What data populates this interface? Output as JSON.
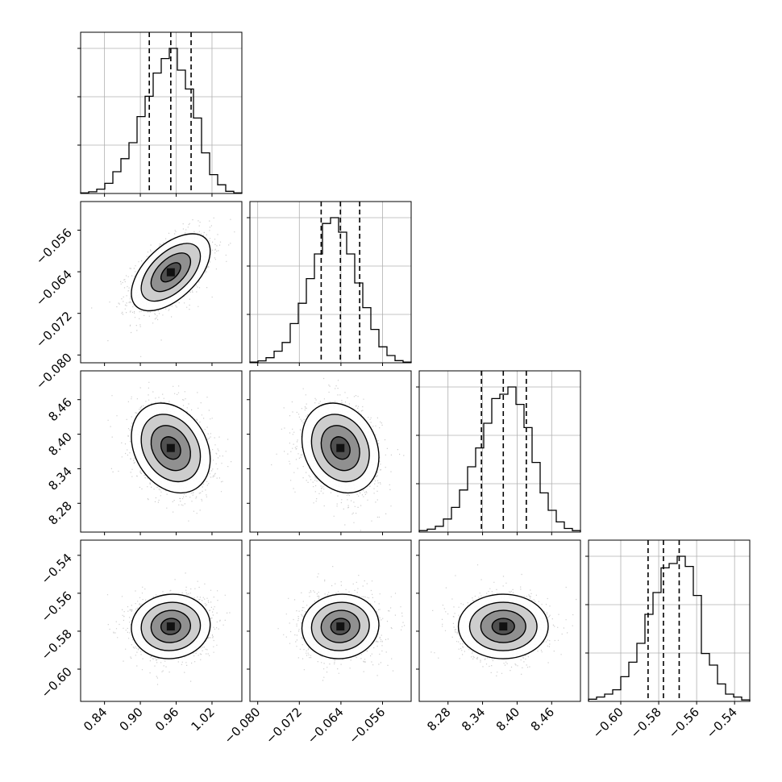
{
  "chart_data": {
    "type": "corner",
    "parameters": 4,
    "ranges": [
      [
        0.8,
        1.07
      ],
      [
        -0.0815,
        -0.0505
      ],
      [
        8.23,
        8.51
      ],
      [
        -0.617,
        -0.532
      ]
    ],
    "ticks": [
      {
        "values": [
          0.84,
          0.9,
          0.96,
          1.02
        ],
        "labels": [
          "0.84",
          "0.90",
          "0.96",
          "1.02"
        ]
      },
      {
        "values": [
          -0.08,
          -0.072,
          -0.064,
          -0.056
        ],
        "labels": [
          "−0.080",
          "−0.072",
          "−0.064",
          "−0.056"
        ]
      },
      {
        "values": [
          8.28,
          8.34,
          8.4,
          8.46
        ],
        "labels": [
          "8.28",
          "8.34",
          "8.40",
          "8.46"
        ]
      },
      {
        "values": [
          -0.6,
          -0.58,
          -0.56,
          -0.54
        ],
        "labels": [
          "−0.60",
          "−0.58",
          "−0.56",
          "−0.54"
        ]
      }
    ],
    "quantiles": [
      [
        0.915,
        0.951,
        0.985
      ],
      [
        -0.0678,
        -0.0641,
        -0.0604
      ],
      [
        8.338,
        8.376,
        8.416
      ],
      [
        -0.5856,
        -0.5775,
        -0.5692
      ]
    ],
    "histograms": [
      [
        0.004,
        0.012,
        0.03,
        0.07,
        0.15,
        0.24,
        0.35,
        0.53,
        0.67,
        0.83,
        0.93,
        1.0,
        0.85,
        0.72,
        0.52,
        0.28,
        0.13,
        0.06,
        0.015,
        0.004
      ],
      [
        0.005,
        0.013,
        0.035,
        0.08,
        0.14,
        0.27,
        0.41,
        0.58,
        0.75,
        0.96,
        1.0,
        0.9,
        0.75,
        0.55,
        0.38,
        0.23,
        0.11,
        0.05,
        0.015,
        0.005
      ],
      [
        0.01,
        0.02,
        0.04,
        0.09,
        0.17,
        0.29,
        0.45,
        0.58,
        0.75,
        0.92,
        0.95,
        1.0,
        0.88,
        0.72,
        0.48,
        0.27,
        0.15,
        0.07,
        0.025,
        0.01
      ],
      [
        0.015,
        0.03,
        0.05,
        0.08,
        0.17,
        0.27,
        0.4,
        0.6,
        0.75,
        0.92,
        0.95,
        1.0,
        0.93,
        0.73,
        0.33,
        0.25,
        0.12,
        0.05,
        0.03,
        0.01
      ]
    ],
    "correlations": [
      [
        1,
        0.55,
        -0.25,
        0.05
      ],
      [
        0.55,
        1,
        -0.2,
        0.05
      ],
      [
        -0.25,
        -0.2,
        1,
        0.0
      ],
      [
        0.05,
        0.05,
        0.0,
        1
      ]
    ],
    "sigma": [
      0.033,
      0.0037,
      0.039,
      0.0085
    ],
    "grid": true,
    "colors": {
      "line": "#000000",
      "points": "#bdbdbd",
      "grid": "#b0b0b0"
    }
  }
}
